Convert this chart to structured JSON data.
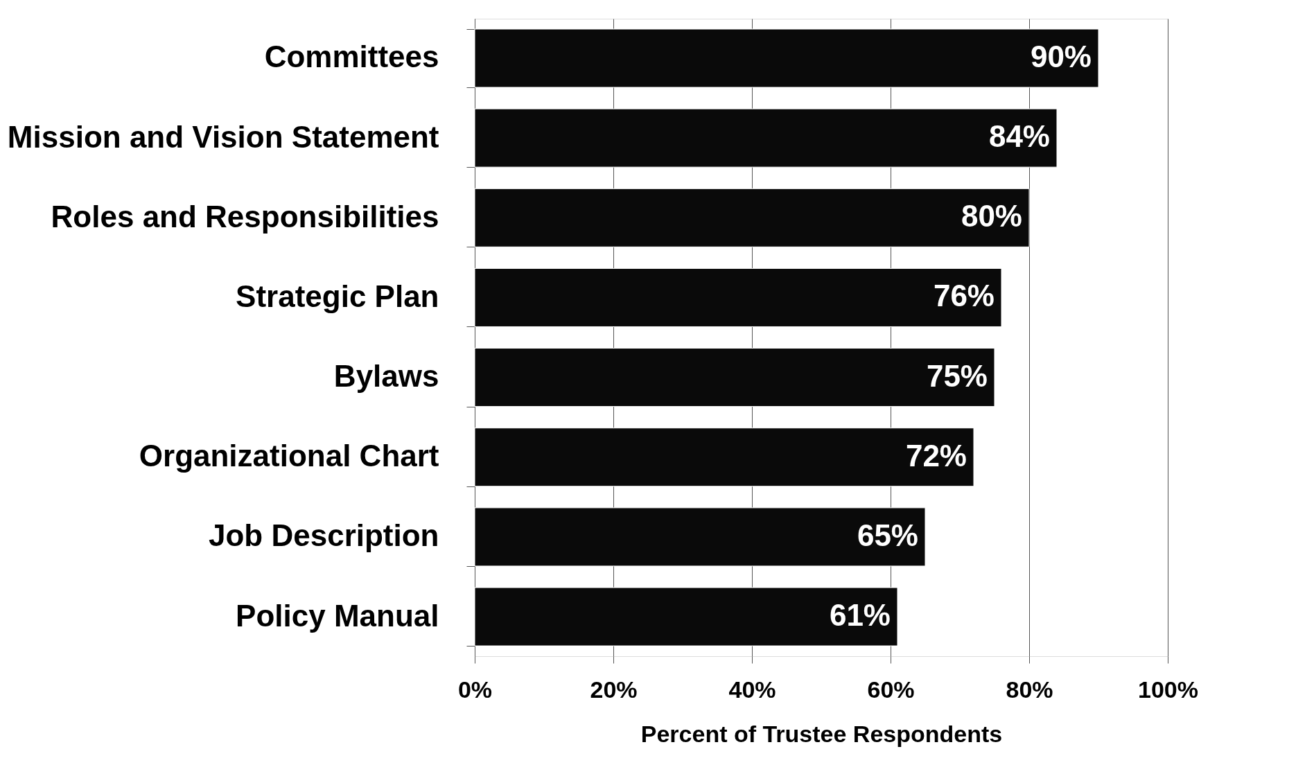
{
  "chart_data": {
    "type": "bar",
    "orientation": "horizontal",
    "xlabel": "Percent of Trustee Respondents",
    "categories": [
      "Committees",
      "Mission and Vision Statement",
      "Roles and Responsibilities",
      "Strategic Plan",
      "Bylaws",
      "Organizational Chart",
      "Job Description",
      "Policy Manual"
    ],
    "values": [
      90,
      84,
      80,
      76,
      75,
      72,
      65,
      61
    ],
    "value_labels": [
      "90%",
      "84%",
      "80%",
      "76%",
      "75%",
      "72%",
      "65%",
      "61%"
    ],
    "color": "#0a0a0a",
    "xlim": [
      0,
      100
    ],
    "xticks": [
      {
        "value": 0,
        "label": "0%"
      },
      {
        "value": 20,
        "label": "20%"
      },
      {
        "value": 40,
        "label": "40%"
      },
      {
        "value": 60,
        "label": "60%"
      },
      {
        "value": 80,
        "label": "80%"
      },
      {
        "value": 100,
        "label": "100%"
      }
    ],
    "grid": "x"
  }
}
